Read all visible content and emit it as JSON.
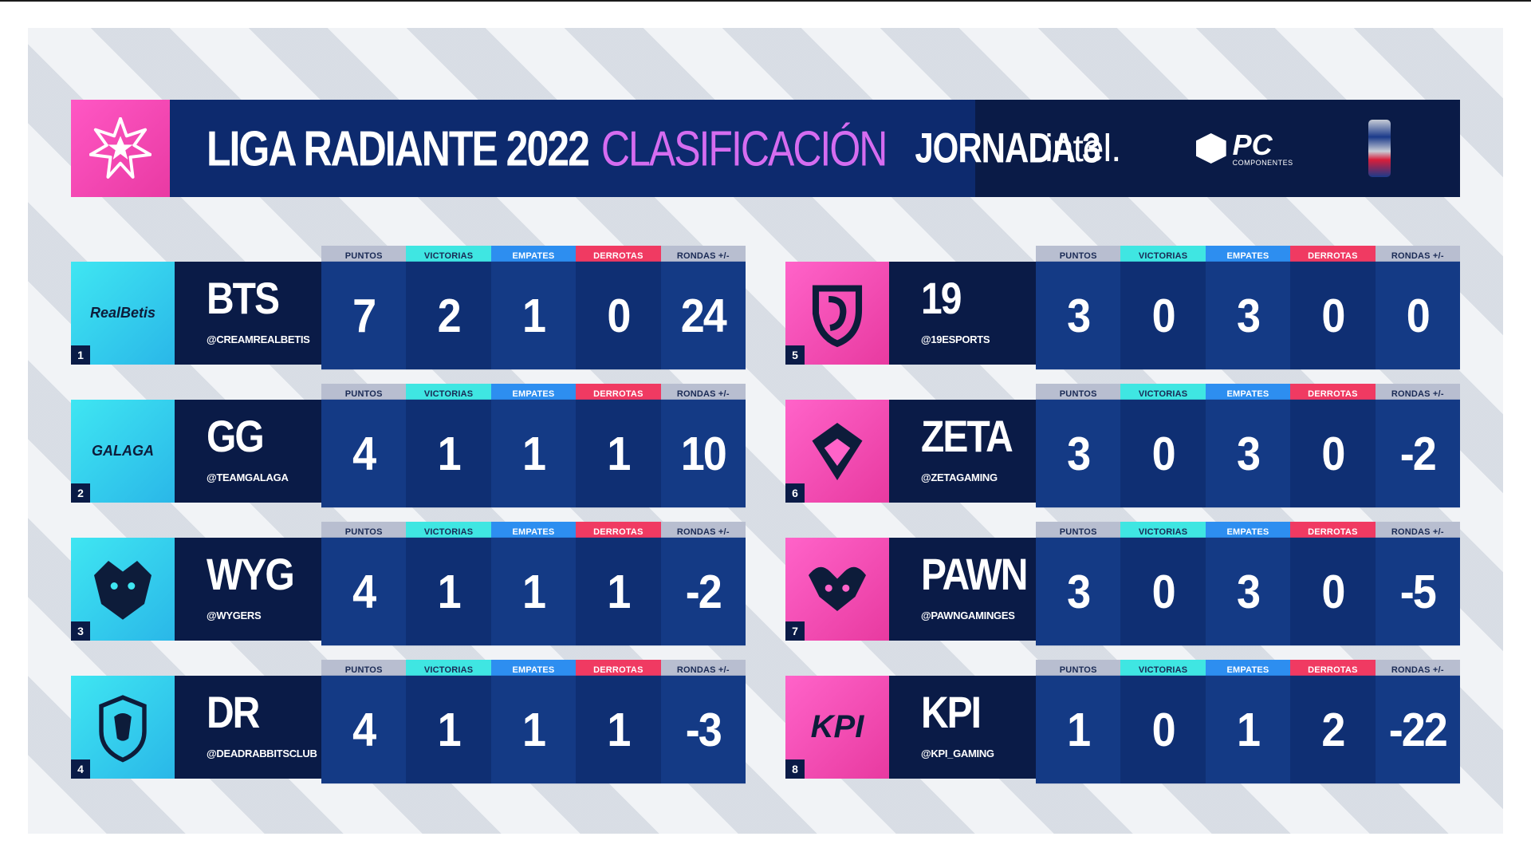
{
  "header": {
    "title": "LIGA RADIANTE 2022",
    "subtitle": "CLASIFICACIÓN",
    "round": "JORNADA 3",
    "sponsors": {
      "intel": "intel.",
      "pc_big": "PC",
      "pc_small": "COMPONENTES"
    }
  },
  "columns": [
    "PUNTOS",
    "VICTORIAS",
    "EMPATES",
    "DERROTAS",
    "RONDAS +/-"
  ],
  "teams": [
    {
      "rank": "1",
      "name": "BTS",
      "handle": "@CREAMREALBETIS",
      "logo_text": "RealBetis",
      "puntos": "7",
      "victorias": "2",
      "empates": "1",
      "derrotas": "0",
      "rondas": "24"
    },
    {
      "rank": "2",
      "name": "GG",
      "handle": "@TEAMGALAGA",
      "logo_text": "GALAGA",
      "puntos": "4",
      "victorias": "1",
      "empates": "1",
      "derrotas": "1",
      "rondas": "10"
    },
    {
      "rank": "3",
      "name": "WYG",
      "handle": "@WYGERS",
      "logo_text": "",
      "puntos": "4",
      "victorias": "1",
      "empates": "1",
      "derrotas": "1",
      "rondas": "-2"
    },
    {
      "rank": "4",
      "name": "DR",
      "handle": "@DEADRABBITSCLUB",
      "logo_text": "",
      "puntos": "4",
      "victorias": "1",
      "empates": "1",
      "derrotas": "1",
      "rondas": "-3"
    },
    {
      "rank": "5",
      "name": "19",
      "handle": "@19ESPORTS",
      "logo_text": "",
      "puntos": "3",
      "victorias": "0",
      "empates": "3",
      "derrotas": "0",
      "rondas": "0"
    },
    {
      "rank": "6",
      "name": "ZETA",
      "handle": "@ZETAGAMING",
      "logo_text": "",
      "puntos": "3",
      "victorias": "0",
      "empates": "3",
      "derrotas": "0",
      "rondas": "-2"
    },
    {
      "rank": "7",
      "name": "PAWN",
      "handle": "@PAWNGAMINGES",
      "logo_text": "",
      "puntos": "3",
      "victorias": "0",
      "empates": "3",
      "derrotas": "0",
      "rondas": "-5"
    },
    {
      "rank": "8",
      "name": "KPI",
      "handle": "@KPI_GAMING",
      "logo_text": "KPI",
      "puntos": "1",
      "victorias": "0",
      "empates": "1",
      "derrotas": "2",
      "rondas": "-22"
    }
  ],
  "colors": {
    "navy": "#0a1b47",
    "blue": "#143a85",
    "cyan": "#3fe6e2",
    "pink": "#ff57c4",
    "empates": "#2d8ef0",
    "derrotas": "#f03a62",
    "accent_purple": "#d56cf0"
  }
}
